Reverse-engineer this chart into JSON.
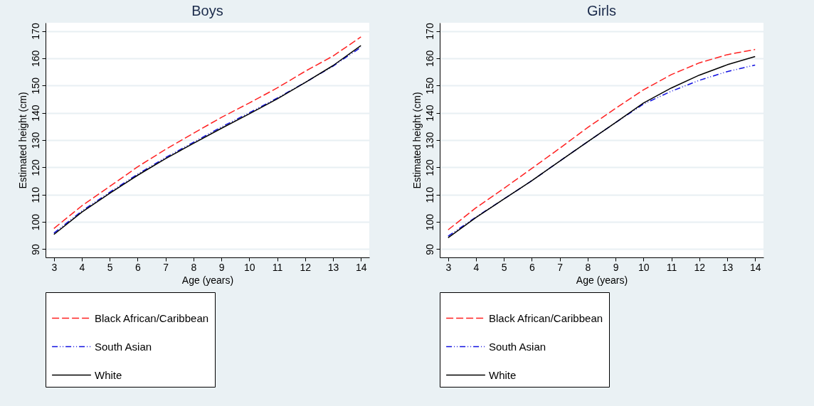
{
  "chart_data": [
    {
      "type": "line",
      "title": "Boys",
      "xlabel": "Age (years)",
      "ylabel": "Estimated height (cm)",
      "x": [
        3,
        4,
        5,
        6,
        7,
        8,
        9,
        10,
        11,
        12,
        13,
        14
      ],
      "series": [
        {
          "name": "Black African/Caribbean",
          "color": "#ff2020",
          "line_style": "dashed",
          "values": [
            97.6,
            105.9,
            113.0,
            120.2,
            126.6,
            132.5,
            138.3,
            143.6,
            149.1,
            155.2,
            160.8,
            167.8
          ]
        },
        {
          "name": "South Asian",
          "color": "#1010e0",
          "line_style": "dotted",
          "values": [
            95.9,
            104.0,
            110.9,
            117.5,
            123.6,
            129.2,
            134.8,
            140.0,
            145.4,
            151.1,
            157.1,
            164.0
          ]
        },
        {
          "name": "White",
          "color": "#000000",
          "line_style": "solid",
          "values": [
            95.4,
            103.6,
            110.5,
            117.1,
            123.2,
            128.8,
            134.3,
            139.6,
            145.1,
            151.1,
            157.3,
            164.6
          ]
        }
      ],
      "xlim": [
        2.7,
        14.3
      ],
      "xticks": [
        3,
        4,
        5,
        6,
        7,
        8,
        9,
        10,
        11,
        12,
        13,
        14
      ],
      "ylim": [
        87,
        173
      ],
      "yticks": [
        90,
        100,
        110,
        120,
        130,
        140,
        150,
        160,
        170
      ],
      "grid": "y",
      "legend": "bottom"
    },
    {
      "type": "line",
      "title": "Girls",
      "xlabel": "Age (years)",
      "ylabel": "Estimated height (cm)",
      "x": [
        3,
        4,
        5,
        6,
        7,
        8,
        9,
        10,
        11,
        12,
        13,
        14
      ],
      "series": [
        {
          "name": "Black African/Caribbean",
          "color": "#ff2020",
          "line_style": "dashed",
          "values": [
            97.1,
            105.2,
            112.3,
            119.6,
            127.0,
            134.6,
            141.6,
            148.4,
            154.0,
            158.3,
            161.3,
            163.2
          ]
        },
        {
          "name": "South Asian",
          "color": "#1010e0",
          "line_style": "dotted",
          "values": [
            94.8,
            101.8,
            108.4,
            115.1,
            122.3,
            129.4,
            136.4,
            143.2,
            147.9,
            151.9,
            155.1,
            157.5
          ]
        },
        {
          "name": "White",
          "color": "#000000",
          "line_style": "solid",
          "values": [
            94.2,
            101.6,
            108.4,
            115.1,
            122.3,
            129.4,
            136.4,
            143.6,
            149.1,
            153.8,
            157.6,
            160.6
          ]
        }
      ],
      "xlim": [
        2.7,
        14.3
      ],
      "xticks": [
        3,
        4,
        5,
        6,
        7,
        8,
        9,
        10,
        11,
        12,
        13,
        14
      ],
      "ylim": [
        87,
        173
      ],
      "yticks": [
        90,
        100,
        110,
        120,
        130,
        140,
        150,
        160,
        170
      ],
      "grid": "y",
      "legend": "bottom"
    }
  ]
}
